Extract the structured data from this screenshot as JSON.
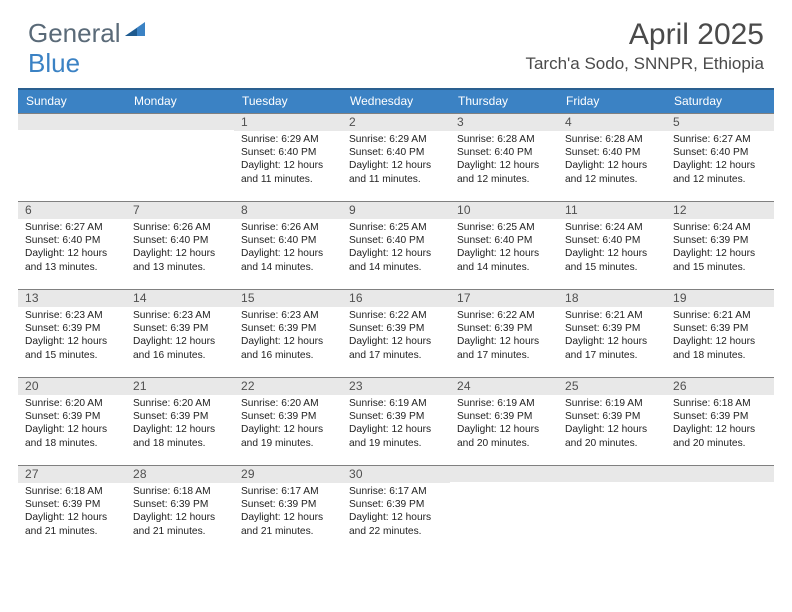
{
  "logo": {
    "part1": "General",
    "part2": "Blue"
  },
  "header": {
    "month_title": "April 2025",
    "location": "Tarch'a Sodo, SNNPR, Ethiopia"
  },
  "colors": {
    "header_bar": "#3b82c4",
    "header_bar_border": "#2a5f8f",
    "day_num_bg": "#e8e8e8",
    "cell_border": "#808080",
    "text_dark": "#4a4a4a",
    "logo_gray": "#5a6a78",
    "logo_blue": "#3b82c4"
  },
  "weekdays": [
    "Sunday",
    "Monday",
    "Tuesday",
    "Wednesday",
    "Thursday",
    "Friday",
    "Saturday"
  ],
  "grid": {
    "leading_blanks": 2,
    "days": [
      {
        "n": 1,
        "sunrise": "6:29 AM",
        "sunset": "6:40 PM",
        "daylight": "12 hours and 11 minutes."
      },
      {
        "n": 2,
        "sunrise": "6:29 AM",
        "sunset": "6:40 PM",
        "daylight": "12 hours and 11 minutes."
      },
      {
        "n": 3,
        "sunrise": "6:28 AM",
        "sunset": "6:40 PM",
        "daylight": "12 hours and 12 minutes."
      },
      {
        "n": 4,
        "sunrise": "6:28 AM",
        "sunset": "6:40 PM",
        "daylight": "12 hours and 12 minutes."
      },
      {
        "n": 5,
        "sunrise": "6:27 AM",
        "sunset": "6:40 PM",
        "daylight": "12 hours and 12 minutes."
      },
      {
        "n": 6,
        "sunrise": "6:27 AM",
        "sunset": "6:40 PM",
        "daylight": "12 hours and 13 minutes."
      },
      {
        "n": 7,
        "sunrise": "6:26 AM",
        "sunset": "6:40 PM",
        "daylight": "12 hours and 13 minutes."
      },
      {
        "n": 8,
        "sunrise": "6:26 AM",
        "sunset": "6:40 PM",
        "daylight": "12 hours and 14 minutes."
      },
      {
        "n": 9,
        "sunrise": "6:25 AM",
        "sunset": "6:40 PM",
        "daylight": "12 hours and 14 minutes."
      },
      {
        "n": 10,
        "sunrise": "6:25 AM",
        "sunset": "6:40 PM",
        "daylight": "12 hours and 14 minutes."
      },
      {
        "n": 11,
        "sunrise": "6:24 AM",
        "sunset": "6:40 PM",
        "daylight": "12 hours and 15 minutes."
      },
      {
        "n": 12,
        "sunrise": "6:24 AM",
        "sunset": "6:39 PM",
        "daylight": "12 hours and 15 minutes."
      },
      {
        "n": 13,
        "sunrise": "6:23 AM",
        "sunset": "6:39 PM",
        "daylight": "12 hours and 15 minutes."
      },
      {
        "n": 14,
        "sunrise": "6:23 AM",
        "sunset": "6:39 PM",
        "daylight": "12 hours and 16 minutes."
      },
      {
        "n": 15,
        "sunrise": "6:23 AM",
        "sunset": "6:39 PM",
        "daylight": "12 hours and 16 minutes."
      },
      {
        "n": 16,
        "sunrise": "6:22 AM",
        "sunset": "6:39 PM",
        "daylight": "12 hours and 17 minutes."
      },
      {
        "n": 17,
        "sunrise": "6:22 AM",
        "sunset": "6:39 PM",
        "daylight": "12 hours and 17 minutes."
      },
      {
        "n": 18,
        "sunrise": "6:21 AM",
        "sunset": "6:39 PM",
        "daylight": "12 hours and 17 minutes."
      },
      {
        "n": 19,
        "sunrise": "6:21 AM",
        "sunset": "6:39 PM",
        "daylight": "12 hours and 18 minutes."
      },
      {
        "n": 20,
        "sunrise": "6:20 AM",
        "sunset": "6:39 PM",
        "daylight": "12 hours and 18 minutes."
      },
      {
        "n": 21,
        "sunrise": "6:20 AM",
        "sunset": "6:39 PM",
        "daylight": "12 hours and 18 minutes."
      },
      {
        "n": 22,
        "sunrise": "6:20 AM",
        "sunset": "6:39 PM",
        "daylight": "12 hours and 19 minutes."
      },
      {
        "n": 23,
        "sunrise": "6:19 AM",
        "sunset": "6:39 PM",
        "daylight": "12 hours and 19 minutes."
      },
      {
        "n": 24,
        "sunrise": "6:19 AM",
        "sunset": "6:39 PM",
        "daylight": "12 hours and 20 minutes."
      },
      {
        "n": 25,
        "sunrise": "6:19 AM",
        "sunset": "6:39 PM",
        "daylight": "12 hours and 20 minutes."
      },
      {
        "n": 26,
        "sunrise": "6:18 AM",
        "sunset": "6:39 PM",
        "daylight": "12 hours and 20 minutes."
      },
      {
        "n": 27,
        "sunrise": "6:18 AM",
        "sunset": "6:39 PM",
        "daylight": "12 hours and 21 minutes."
      },
      {
        "n": 28,
        "sunrise": "6:18 AM",
        "sunset": "6:39 PM",
        "daylight": "12 hours and 21 minutes."
      },
      {
        "n": 29,
        "sunrise": "6:17 AM",
        "sunset": "6:39 PM",
        "daylight": "12 hours and 21 minutes."
      },
      {
        "n": 30,
        "sunrise": "6:17 AM",
        "sunset": "6:39 PM",
        "daylight": "12 hours and 22 minutes."
      }
    ],
    "trailing_blanks": 3
  },
  "labels": {
    "sunrise_prefix": "Sunrise: ",
    "sunset_prefix": "Sunset: ",
    "daylight_prefix": "Daylight: "
  }
}
